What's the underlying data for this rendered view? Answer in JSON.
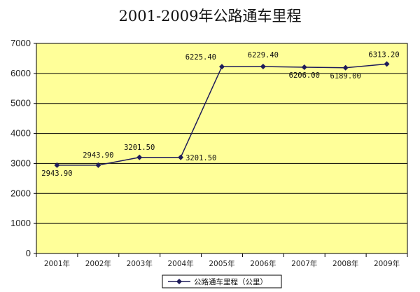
{
  "chart_data": {
    "type": "line",
    "title": "2001-2009年公路通车里程",
    "xlabel": "",
    "ylabel": "",
    "categories": [
      "2001年",
      "2002年",
      "2003年",
      "2004年",
      "2005年",
      "2006年",
      "2007年",
      "2008年",
      "2009年"
    ],
    "series": [
      {
        "name": "公路通车里程（公里）",
        "values": [
          2943.9,
          2943.9,
          3201.5,
          3201.5,
          6225.4,
          6229.4,
          6206.0,
          6189.0,
          6313.2
        ],
        "data_labels": [
          "2943.90",
          "2943.90",
          "3201.50",
          "3201.50",
          "6225.40",
          "6229.40",
          "6206.00",
          "6189.00",
          "6313.20"
        ]
      }
    ],
    "ylim": [
      0,
      7000
    ],
    "yticks": [
      0,
      1000,
      2000,
      3000,
      4000,
      5000,
      6000,
      7000
    ],
    "ytick_labels": [
      "0",
      "1000",
      "2000",
      "3000",
      "4000",
      "5000",
      "6000",
      "7000"
    ],
    "grid": true,
    "legend_position": "bottom",
    "colors": {
      "plot_background": "#ffff99",
      "line": "#1e1b5a",
      "grid": "#000000"
    }
  }
}
